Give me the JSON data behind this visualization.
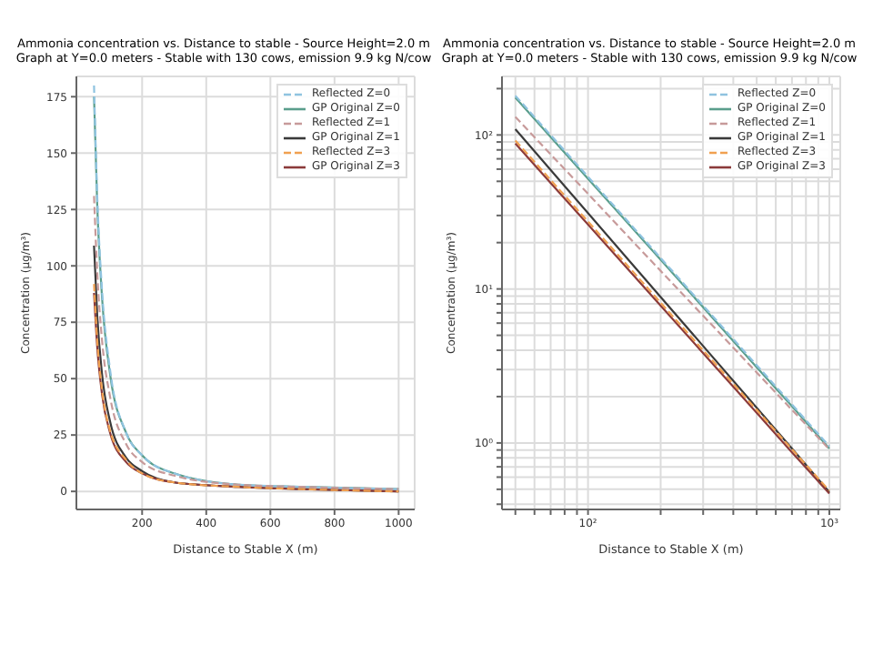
{
  "chart_data": [
    {
      "type": "line",
      "title": "Ammonia concentration vs. Distance to stable - Source Height=2.0 m",
      "subtitle": "Graph at Y=0.0 meters - Stable with 130 cows, emission 9.9 kg N/cow",
      "xlabel": "Distance to Stable X (m)",
      "ylabel": "Concentration (μg/m³)",
      "x": [
        50,
        60,
        75,
        100,
        150,
        200,
        300,
        500,
        700,
        1000
      ],
      "series": [
        {
          "name": "Reflected Z=0",
          "color": "#8fc3e0",
          "line_style": "dashed",
          "values": [
            180,
            131,
            89,
            54,
            26,
            16,
            8,
            3,
            2,
            1
          ]
        },
        {
          "name": "GP Original Z=0",
          "color": "#5a9e8c",
          "line_style": "solid",
          "values": [
            175,
            127,
            86,
            52,
            26,
            16,
            8,
            3,
            2,
            1
          ]
        },
        {
          "name": "Reflected Z=1",
          "color": "#c79a9a",
          "line_style": "dashed",
          "values": [
            131,
            97,
            67,
            42,
            21,
            13,
            7,
            3,
            2,
            1
          ]
        },
        {
          "name": "GP Original Z=1",
          "color": "#3a3a3a",
          "line_style": "solid",
          "values": [
            109,
            78,
            52,
            31,
            15,
            9,
            4,
            2,
            1,
            0
          ]
        },
        {
          "name": "Reflected Z=3",
          "color": "#f0a050",
          "line_style": "dashed",
          "values": [
            92,
            67,
            45,
            27,
            14,
            8,
            4,
            2,
            1,
            0
          ]
        },
        {
          "name": "GP Original Z=3",
          "color": "#8b3a3a",
          "line_style": "solid",
          "values": [
            88,
            64,
            43,
            26,
            13,
            8,
            4,
            2,
            1,
            0
          ]
        }
      ],
      "xlim": [
        -5,
        1050
      ],
      "xticks": [
        200,
        400,
        600,
        800,
        1000
      ],
      "ylim": [
        -8,
        184
      ],
      "yticks": [
        0,
        25,
        50,
        75,
        100,
        125,
        150,
        175
      ],
      "grid": true,
      "legend": "top right",
      "marker": "none"
    },
    {
      "type": "line",
      "title": "Ammonia concentration vs. Distance to stable - Source Height=2.0 m",
      "subtitle": "Graph at Y=0.0 meters - Stable with 130 cows, emission 9.9 kg N/cow",
      "xlabel": "Distance to Stable X (m)",
      "ylabel": "Concentration (μg/m³)",
      "x": [
        50,
        60,
        75,
        100,
        150,
        200,
        300,
        500,
        700,
        1000
      ],
      "series": [
        {
          "name": "Reflected Z=0",
          "color": "#8fc3e0",
          "line_style": "dashed",
          "values": [
            180,
            130.8,
            88.5,
            53.5,
            26.3,
            15.9,
            7.8,
            3.2,
            1.78,
            0.95
          ]
        },
        {
          "name": "GP Original Z=0",
          "color": "#5a9e8c",
          "line_style": "solid",
          "values": [
            175,
            127,
            86,
            52,
            25.6,
            15.5,
            7.6,
            3.1,
            1.73,
            0.92
          ]
        },
        {
          "name": "Reflected Z=1",
          "color": "#c79a9a",
          "line_style": "dashed",
          "values": [
            131,
            96.8,
            66.8,
            41.5,
            21.1,
            13.1,
            6.7,
            2.87,
            1.64,
            0.91
          ]
        },
        {
          "name": "GP Original Z=1",
          "color": "#3a3a3a",
          "line_style": "solid",
          "values": [
            109,
            78.3,
            52.3,
            31.1,
            14.9,
            8.86,
            4.26,
            1.69,
            0.92,
            0.48
          ]
        },
        {
          "name": "Reflected Z=3",
          "color": "#f0a050",
          "line_style": "dashed",
          "values": [
            92,
            66.9,
            45.2,
            27.4,
            13.5,
            8.13,
            4.0,
            1.64,
            0.91,
            0.49
          ]
        },
        {
          "name": "GP Original Z=3",
          "color": "#8b3a3a",
          "line_style": "solid",
          "values": [
            88,
            64,
            43.2,
            26.2,
            12.9,
            7.78,
            3.83,
            1.57,
            0.87,
            0.47
          ]
        }
      ],
      "xlim": [
        44,
        1110
      ],
      "xticks": [
        {
          "value": 50,
          "label": null
        },
        {
          "value": 60,
          "label": null
        },
        {
          "value": 70,
          "label": null
        },
        {
          "value": 80,
          "label": null
        },
        {
          "value": 90,
          "label": null
        },
        {
          "value": 100,
          "label": "10²"
        },
        {
          "value": 200,
          "label": null
        },
        {
          "value": 300,
          "label": null
        },
        {
          "value": 400,
          "label": null
        },
        {
          "value": 500,
          "label": null
        },
        {
          "value": 600,
          "label": null
        },
        {
          "value": 700,
          "label": null
        },
        {
          "value": 800,
          "label": null
        },
        {
          "value": 900,
          "label": null
        },
        {
          "value": 1000,
          "label": "10³"
        }
      ],
      "ylim": [
        0.37,
        240
      ],
      "yticks": [
        {
          "value": 0.4,
          "label": null
        },
        {
          "value": 0.5,
          "label": null
        },
        {
          "value": 0.6,
          "label": null
        },
        {
          "value": 0.7,
          "label": null
        },
        {
          "value": 0.8,
          "label": null
        },
        {
          "value": 0.9,
          "label": null
        },
        {
          "value": 1,
          "label": "10⁰"
        },
        {
          "value": 2,
          "label": null
        },
        {
          "value": 3,
          "label": null
        },
        {
          "value": 4,
          "label": null
        },
        {
          "value": 5,
          "label": null
        },
        {
          "value": 6,
          "label": null
        },
        {
          "value": 7,
          "label": null
        },
        {
          "value": 8,
          "label": null
        },
        {
          "value": 9,
          "label": null
        },
        {
          "value": 10,
          "label": "10¹"
        },
        {
          "value": 20,
          "label": null
        },
        {
          "value": 30,
          "label": null
        },
        {
          "value": 40,
          "label": null
        },
        {
          "value": 50,
          "label": null
        },
        {
          "value": 60,
          "label": null
        },
        {
          "value": 70,
          "label": null
        },
        {
          "value": 80,
          "label": null
        },
        {
          "value": 90,
          "label": null
        },
        {
          "value": 100,
          "label": "10²"
        },
        {
          "value": 200,
          "label": null
        }
      ],
      "log": "xy",
      "grid": true,
      "legend": "top right",
      "marker": "none"
    }
  ]
}
